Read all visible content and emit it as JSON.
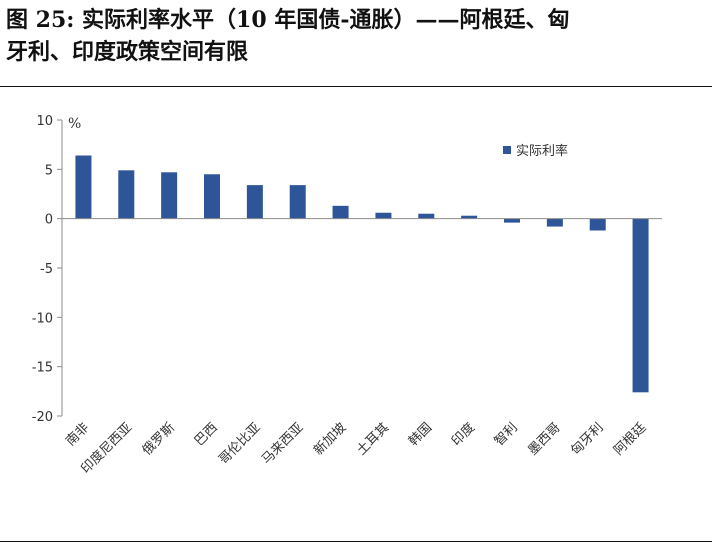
{
  "figure": {
    "title_line1": "图 25:  实际利率水平（10 年国债-通胀）——阿根廷、匈",
    "title_line2": "牙利、印度政策空间有限"
  },
  "chart_data": {
    "type": "bar",
    "title": "",
    "unit": "%",
    "xlabel": "",
    "ylabel": "",
    "ylim": [
      -20,
      10
    ],
    "yticks": [
      10,
      5,
      0,
      -5,
      -10,
      -15,
      -20
    ],
    "grid": false,
    "legend_position": "top-right",
    "categories": [
      "南非",
      "印度尼西亚",
      "俄罗斯",
      "巴西",
      "哥伦比亚",
      "马来西亚",
      "新加坡",
      "土耳其",
      "韩国",
      "印度",
      "智利",
      "墨西哥",
      "匈牙利",
      "阿根廷"
    ],
    "series": [
      {
        "name": "实际利率",
        "color": "#2e5597",
        "values": [
          6.4,
          4.9,
          4.7,
          4.5,
          3.4,
          3.4,
          1.3,
          0.6,
          0.5,
          0.3,
          -0.4,
          -0.8,
          -1.2,
          -17.6
        ]
      }
    ]
  }
}
